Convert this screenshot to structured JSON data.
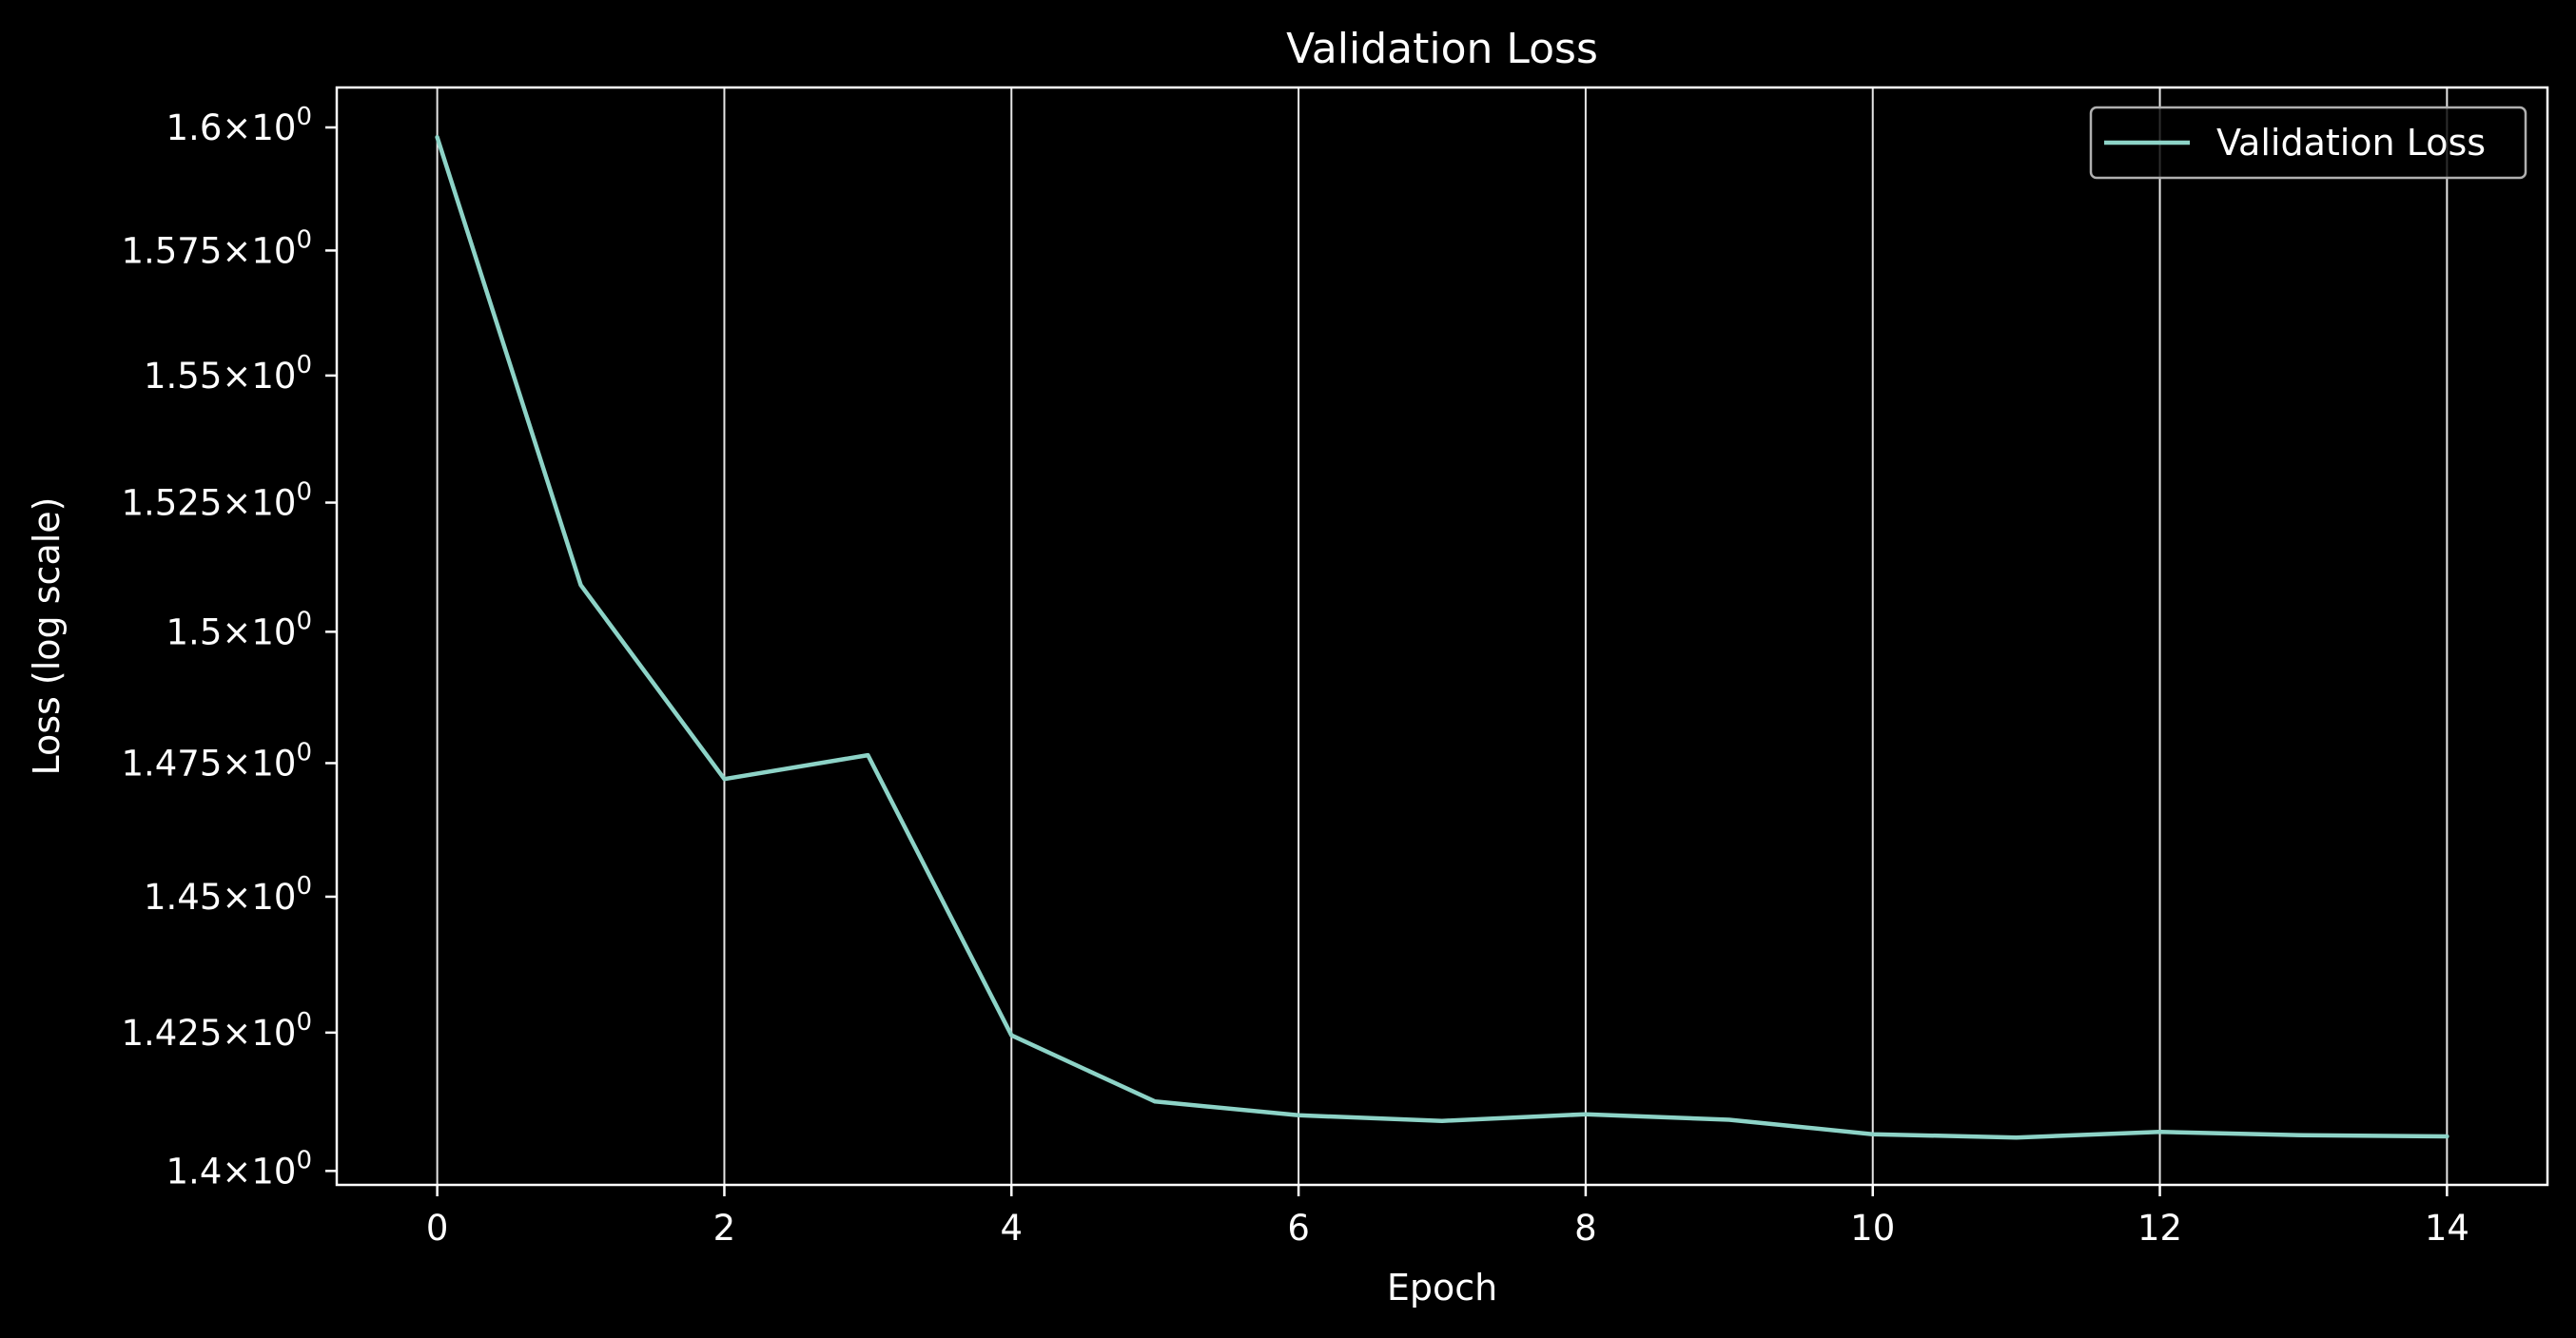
{
  "chart_data": {
    "type": "line",
    "title": "Validation Loss",
    "xlabel": "Epoch",
    "ylabel": "Loss (log scale)",
    "yscale": "log",
    "xlim": [
      -0.7,
      14.7
    ],
    "ylim": [
      1.3975,
      1.6082
    ],
    "grid": "vertical lines at x ticks",
    "legend_position": "top-right",
    "x_ticks": [
      0,
      2,
      4,
      6,
      8,
      10,
      12,
      14
    ],
    "x_tick_labels": [
      "0",
      "2",
      "4",
      "6",
      "8",
      "10",
      "12",
      "14"
    ],
    "y_ticks": [
      1.4,
      1.425,
      1.45,
      1.475,
      1.5,
      1.525,
      1.55,
      1.575,
      1.6
    ],
    "y_tick_labels": [
      {
        "mantissa": "1.4",
        "times": "×",
        "base": "10",
        "exp": "0"
      },
      {
        "mantissa": "1.425",
        "times": "×",
        "base": "10",
        "exp": "0"
      },
      {
        "mantissa": "1.45",
        "times": "×",
        "base": "10",
        "exp": "0"
      },
      {
        "mantissa": "1.475",
        "times": "×",
        "base": "10",
        "exp": "0"
      },
      {
        "mantissa": "1.5",
        "times": "×",
        "base": "10",
        "exp": "0"
      },
      {
        "mantissa": "1.525",
        "times": "×",
        "base": "10",
        "exp": "0"
      },
      {
        "mantissa": "1.55",
        "times": "×",
        "base": "10",
        "exp": "0"
      },
      {
        "mantissa": "1.575",
        "times": "×",
        "base": "10",
        "exp": "0"
      },
      {
        "mantissa": "1.6",
        "times": "×",
        "base": "10",
        "exp": "0"
      }
    ],
    "series": [
      {
        "name": "Validation Loss",
        "color": "#8dd3c7",
        "x": [
          0,
          1,
          2,
          3,
          4,
          5,
          6,
          7,
          8,
          9,
          10,
          11,
          12,
          13,
          14
        ],
        "values": [
          1.598,
          1.509,
          1.472,
          1.4765,
          1.4245,
          1.4125,
          1.41,
          1.409,
          1.4102,
          1.4092,
          1.4066,
          1.406,
          1.407,
          1.4064,
          1.4062
        ]
      }
    ],
    "colors": {
      "background": "#000000",
      "axes": "#ffffff",
      "grid": "#ffffff",
      "text": "#ffffff",
      "legend_frame": "#b0b0b0"
    }
  }
}
